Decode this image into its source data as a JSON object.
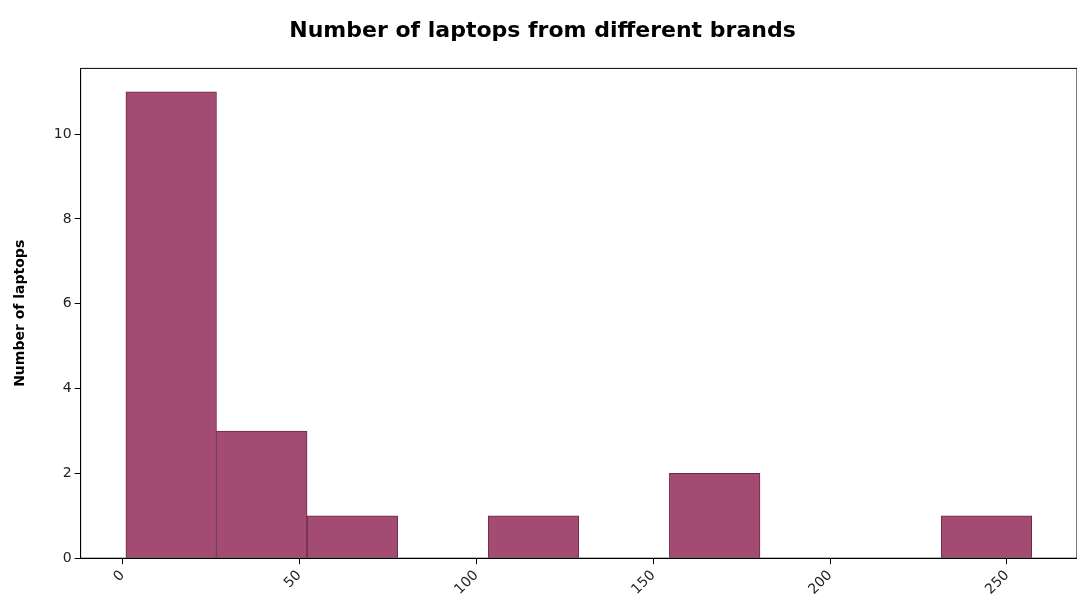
{
  "chart_data": {
    "type": "histogram",
    "title": "Number of laptops from different brands",
    "ylabel": "Number of laptops",
    "bins": [
      1,
      26.6,
      52.2,
      77.8,
      103.4,
      129,
      154.6,
      180.2,
      205.8,
      231.4,
      257
    ],
    "values": [
      11,
      3,
      1,
      0,
      1,
      0,
      2,
      0,
      0,
      1
    ],
    "color": "#a44b74",
    "xlim": [
      -11.8,
      269.8
    ],
    "xticks": [
      0,
      50,
      100,
      150,
      200,
      250
    ],
    "ylim": [
      0,
      11.55
    ],
    "yticks": [
      0,
      2,
      4,
      6,
      8,
      10
    ],
    "grid": false,
    "legend": false
  }
}
